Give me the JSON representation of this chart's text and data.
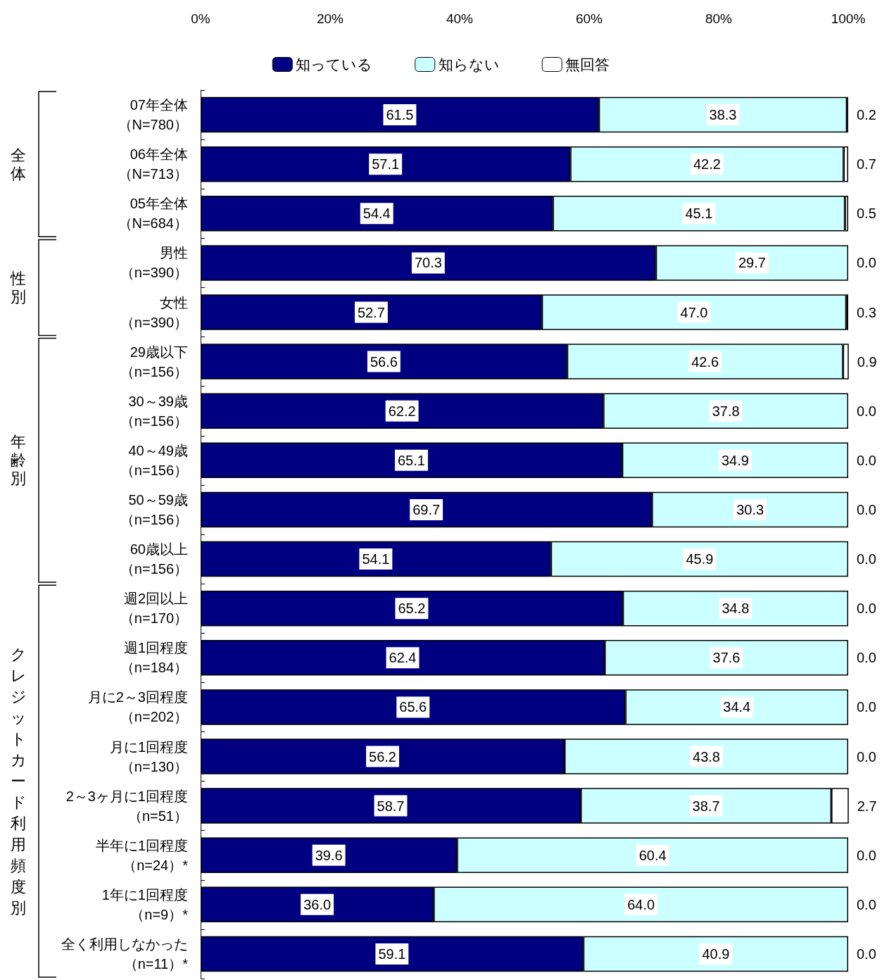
{
  "chart_data": {
    "type": "bar",
    "orientation": "horizontal",
    "stacked": true,
    "categories": [
      "07年全体（N=780）",
      "06年全体（N=713）",
      "05年全体（N=684）",
      "男性（n=390）",
      "女性（n=390）",
      "29歳以下（n=156）",
      "30～39歳（n=156）",
      "40～49歳（n=156）",
      "50～59歳（n=156）",
      "60歳以上（n=156）",
      "週2回以上（n=170）",
      "週1回程度（n=184）",
      "月に2～3回程度（n=202）",
      "月に1回程度（n=130）",
      "2～3ヶ月に1回程度（n=51）",
      "半年に1回程度（n=24）*",
      "1年に1回程度（n=9）*",
      "全く利用しなかった（n=11）*"
    ],
    "series": [
      {
        "name": "知っている",
        "color": "#000080",
        "values": [
          61.5,
          57.1,
          54.4,
          70.3,
          52.7,
          56.6,
          62.2,
          65.1,
          69.7,
          54.1,
          65.2,
          62.4,
          65.6,
          56.2,
          58.7,
          39.6,
          36.0,
          59.1
        ],
        "value_labels": [
          "61.5",
          "57.1",
          "54.4",
          "70.3",
          "52.7",
          "56.6",
          "62.2",
          "65.1",
          "69.7",
          "54.1",
          "65.2",
          "62.4",
          "65.6",
          "56.2",
          "58.7",
          "39.6",
          "36.0",
          "59.1"
        ]
      },
      {
        "name": "知らない",
        "color": "#ccffff",
        "values": [
          38.3,
          42.2,
          45.1,
          29.7,
          47.0,
          42.6,
          37.8,
          34.9,
          30.3,
          45.9,
          34.8,
          37.6,
          34.4,
          43.8,
          38.7,
          60.4,
          64.0,
          40.9
        ],
        "value_labels": [
          "38.3",
          "42.2",
          "45.1",
          "29.7",
          "47.0",
          "42.6",
          "37.8",
          "34.9",
          "30.3",
          "45.9",
          "34.8",
          "37.6",
          "34.4",
          "43.8",
          "38.7",
          "60.4",
          "64.0",
          "40.9"
        ]
      },
      {
        "name": "無回答",
        "color": "#ffffff",
        "values": [
          0.2,
          0.7,
          0.5,
          0.0,
          0.3,
          0.9,
          0.0,
          0.0,
          0.0,
          0.0,
          0.0,
          0.0,
          0.0,
          0.0,
          2.7,
          0.0,
          0.0,
          0.0
        ],
        "value_labels": [
          "0.2",
          "0.7",
          "0.5",
          "0.0",
          "0.3",
          "0.9",
          "0.0",
          "0.0",
          "0.0",
          "0.0",
          "0.0",
          "0.0",
          "0.0",
          "0.0",
          "2.7",
          "0.0",
          "0.0",
          "0.0"
        ]
      }
    ],
    "xlim": [
      0,
      100
    ],
    "xticks": [
      {
        "value": 0,
        "label": "0%"
      },
      {
        "value": 20,
        "label": "20%"
      },
      {
        "value": 40,
        "label": "40%"
      },
      {
        "value": 60,
        "label": "60%"
      },
      {
        "value": 80,
        "label": "80%"
      },
      {
        "value": 100,
        "label": "100%"
      }
    ],
    "legend": "top",
    "grid": false,
    "annotations": [
      "全体",
      "性別",
      "年齢別",
      "クレジットカード利用頻度別"
    ]
  }
}
